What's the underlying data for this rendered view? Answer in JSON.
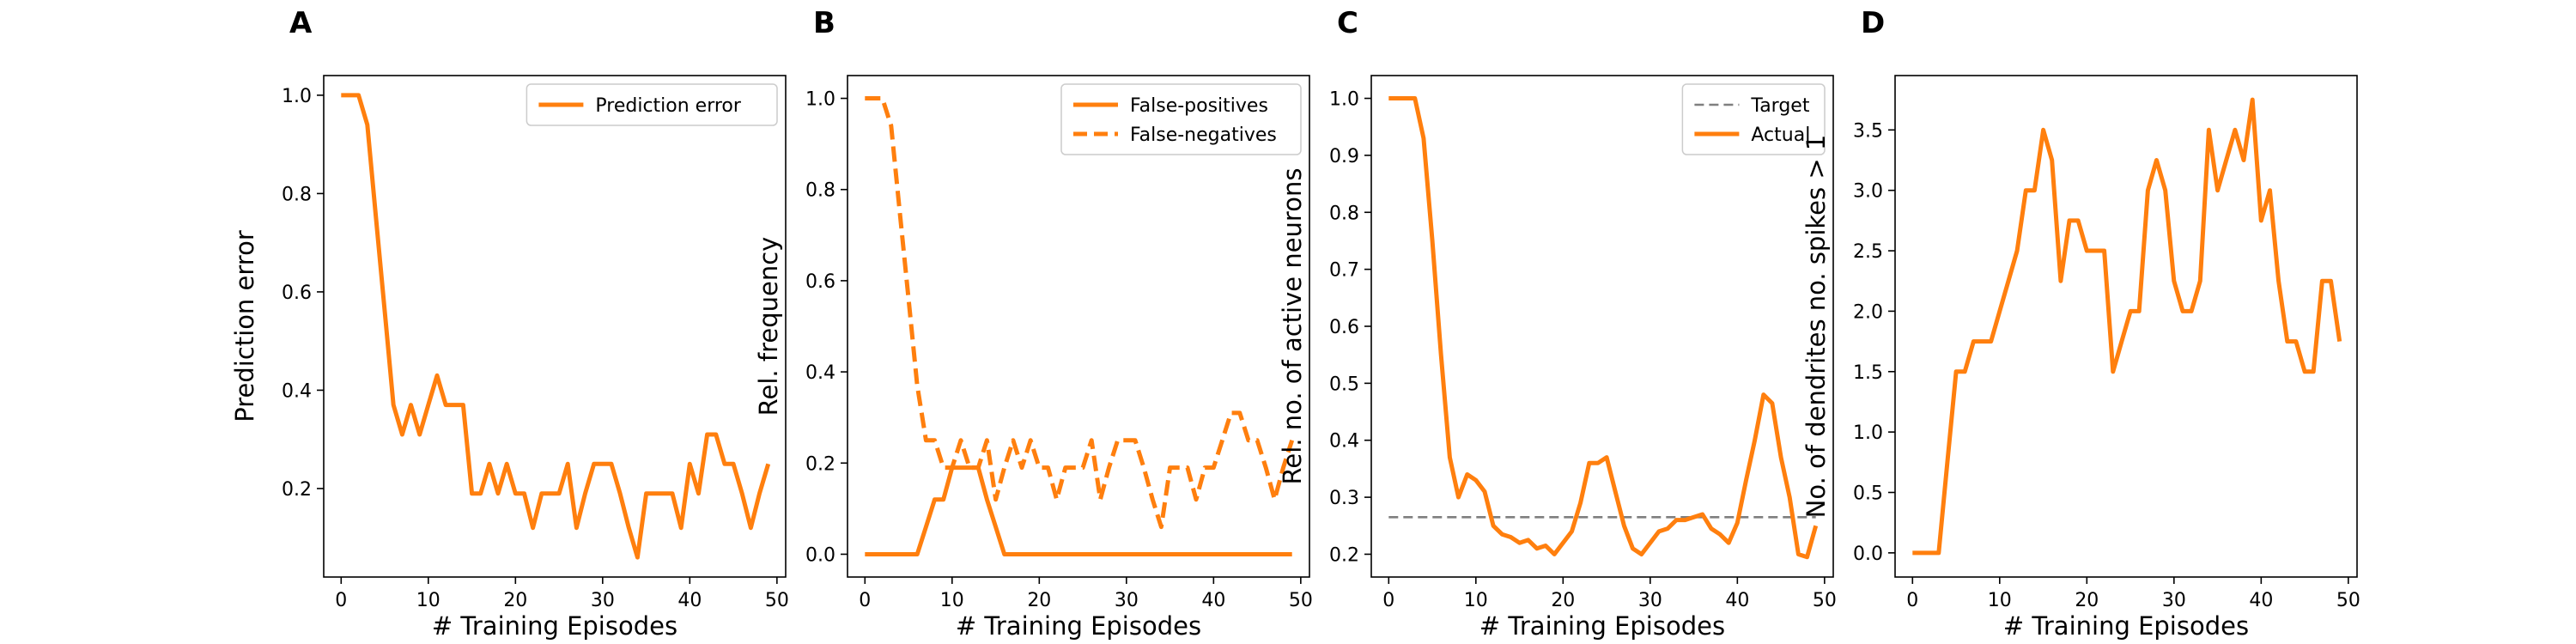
{
  "colors": {
    "series": "#ff7f0e",
    "target": "#7f7f7f"
  },
  "chart_data": [
    {
      "type": "line",
      "panel": "A",
      "xlabel": "# Training Episodes",
      "ylabel": "Prediction error",
      "xlim": [
        -2,
        51
      ],
      "ylim": [
        0.02,
        1.04
      ],
      "xticks": [
        0,
        10,
        20,
        30,
        40,
        50
      ],
      "yticks": [
        0.2,
        0.4,
        0.6,
        0.8,
        1.0
      ],
      "ytick_labels": [
        "0.2",
        "0.4",
        "0.6",
        "0.8",
        "1.0"
      ],
      "legend_position": "top-right",
      "series": [
        {
          "name": "Prediction error",
          "style": "solid",
          "color": "#ff7f0e",
          "x": [
            0,
            1,
            2,
            3,
            4,
            5,
            6,
            7,
            8,
            9,
            10,
            11,
            12,
            13,
            14,
            15,
            16,
            17,
            18,
            19,
            20,
            21,
            22,
            23,
            24,
            25,
            26,
            27,
            28,
            29,
            30,
            31,
            32,
            33,
            34,
            35,
            36,
            37,
            38,
            39,
            40,
            41,
            42,
            43,
            44,
            45,
            46,
            47,
            48,
            49
          ],
          "y": [
            1.0,
            1.0,
            1.0,
            0.94,
            0.75,
            0.56,
            0.37,
            0.31,
            0.37,
            0.31,
            0.37,
            0.43,
            0.37,
            0.37,
            0.37,
            0.19,
            0.19,
            0.25,
            0.19,
            0.25,
            0.19,
            0.19,
            0.12,
            0.19,
            0.19,
            0.19,
            0.25,
            0.12,
            0.19,
            0.25,
            0.25,
            0.25,
            0.19,
            0.12,
            0.06,
            0.19,
            0.19,
            0.19,
            0.19,
            0.12,
            0.25,
            0.19,
            0.31,
            0.31,
            0.25,
            0.25,
            0.19,
            0.12,
            0.19,
            0.25
          ]
        }
      ]
    },
    {
      "type": "line",
      "panel": "B",
      "xlabel": "# Training Episodes",
      "ylabel": "Rel. frequency",
      "xlim": [
        -2,
        51
      ],
      "ylim": [
        -0.05,
        1.05
      ],
      "xticks": [
        0,
        10,
        20,
        30,
        40,
        50
      ],
      "yticks": [
        0.0,
        0.2,
        0.4,
        0.6,
        0.8,
        1.0
      ],
      "ytick_labels": [
        "0.0",
        "0.2",
        "0.4",
        "0.6",
        "0.8",
        "1.0"
      ],
      "legend_position": "top-right",
      "series": [
        {
          "name": "False-positives",
          "style": "solid",
          "color": "#ff7f0e",
          "x": [
            0,
            1,
            2,
            3,
            4,
            5,
            6,
            7,
            8,
            9,
            10,
            11,
            12,
            13,
            14,
            15,
            16,
            17,
            18,
            19,
            20,
            21,
            22,
            23,
            24,
            25,
            26,
            27,
            28,
            29,
            30,
            31,
            32,
            33,
            34,
            35,
            36,
            37,
            38,
            39,
            40,
            41,
            42,
            43,
            44,
            45,
            46,
            47,
            48,
            49
          ],
          "y": [
            0,
            0,
            0,
            0,
            0,
            0,
            0,
            0.06,
            0.12,
            0.12,
            0.19,
            0.19,
            0.19,
            0.19,
            0.12,
            0.06,
            0,
            0,
            0,
            0,
            0,
            0,
            0,
            0,
            0,
            0,
            0,
            0,
            0,
            0,
            0,
            0,
            0,
            0,
            0,
            0,
            0,
            0,
            0,
            0,
            0,
            0,
            0,
            0,
            0,
            0,
            0,
            0,
            0,
            0
          ]
        },
        {
          "name": "False-negatives",
          "style": "dashed",
          "color": "#ff7f0e",
          "x": [
            0,
            1,
            2,
            3,
            4,
            5,
            6,
            7,
            8,
            9,
            10,
            11,
            12,
            13,
            14,
            15,
            16,
            17,
            18,
            19,
            20,
            21,
            22,
            23,
            24,
            25,
            26,
            27,
            28,
            29,
            30,
            31,
            32,
            33,
            34,
            35,
            36,
            37,
            38,
            39,
            40,
            41,
            42,
            43,
            44,
            45,
            46,
            47,
            48,
            49
          ],
          "y": [
            1.0,
            1.0,
            1.0,
            0.94,
            0.75,
            0.56,
            0.37,
            0.25,
            0.25,
            0.19,
            0.19,
            0.25,
            0.19,
            0.19,
            0.25,
            0.12,
            0.19,
            0.25,
            0.19,
            0.25,
            0.19,
            0.19,
            0.12,
            0.19,
            0.19,
            0.19,
            0.25,
            0.12,
            0.19,
            0.25,
            0.25,
            0.25,
            0.19,
            0.12,
            0.06,
            0.19,
            0.19,
            0.19,
            0.12,
            0.19,
            0.19,
            0.25,
            0.31,
            0.31,
            0.25,
            0.25,
            0.19,
            0.12,
            0.19,
            0.25
          ]
        }
      ]
    },
    {
      "type": "line",
      "panel": "C",
      "xlabel": "# Training Episodes",
      "ylabel": "Rel. no. of active neurons",
      "xlim": [
        -2,
        51
      ],
      "ylim": [
        0.16,
        1.04
      ],
      "xticks": [
        0,
        10,
        20,
        30,
        40,
        50
      ],
      "yticks": [
        0.2,
        0.3,
        0.4,
        0.5,
        0.6,
        0.7,
        0.8,
        0.9,
        1.0
      ],
      "ytick_labels": [
        "0.2",
        "0.3",
        "0.4",
        "0.5",
        "0.6",
        "0.7",
        "0.8",
        "0.9",
        "1.0"
      ],
      "legend_position": "top-right",
      "series": [
        {
          "name": "Target",
          "style": "dashed",
          "color": "#7f7f7f",
          "x": [
            0,
            49
          ],
          "y": [
            0.265,
            0.265
          ]
        },
        {
          "name": "Actual",
          "style": "solid",
          "color": "#ff7f0e",
          "x": [
            0,
            1,
            2,
            3,
            4,
            5,
            6,
            7,
            8,
            9,
            10,
            11,
            12,
            13,
            14,
            15,
            16,
            17,
            18,
            19,
            20,
            21,
            22,
            23,
            24,
            25,
            26,
            27,
            28,
            29,
            30,
            31,
            32,
            33,
            34,
            35,
            36,
            37,
            38,
            39,
            40,
            41,
            42,
            43,
            44,
            45,
            46,
            47,
            48,
            49
          ],
          "y": [
            1.0,
            1.0,
            1.0,
            1.0,
            0.93,
            0.75,
            0.55,
            0.37,
            0.3,
            0.34,
            0.33,
            0.31,
            0.25,
            0.235,
            0.23,
            0.22,
            0.225,
            0.21,
            0.215,
            0.2,
            0.22,
            0.24,
            0.29,
            0.36,
            0.36,
            0.37,
            0.31,
            0.25,
            0.21,
            0.2,
            0.22,
            0.24,
            0.245,
            0.26,
            0.26,
            0.265,
            0.27,
            0.245,
            0.235,
            0.22,
            0.255,
            0.33,
            0.4,
            0.48,
            0.465,
            0.37,
            0.3,
            0.2,
            0.195,
            0.25
          ]
        }
      ]
    },
    {
      "type": "line",
      "panel": "D",
      "xlabel": "# Training Episodes",
      "ylabel": "No. of dendrites no. spikes > 1",
      "xlim": [
        -2,
        51
      ],
      "ylim": [
        -0.2,
        3.95
      ],
      "xticks": [
        0,
        10,
        20,
        30,
        40,
        50
      ],
      "yticks": [
        0.0,
        0.5,
        1.0,
        1.5,
        2.0,
        2.5,
        3.0,
        3.5
      ],
      "ytick_labels": [
        "0.0",
        "0.5",
        "1.0",
        "1.5",
        "2.0",
        "2.5",
        "3.0",
        "3.5"
      ],
      "legend_position": "none",
      "series": [
        {
          "color": "#ff7f0e",
          "style": "solid",
          "x": [
            0,
            1,
            2,
            3,
            4,
            5,
            6,
            7,
            8,
            9,
            10,
            11,
            12,
            13,
            14,
            15,
            16,
            17,
            18,
            19,
            20,
            21,
            22,
            23,
            24,
            25,
            26,
            27,
            28,
            29,
            30,
            31,
            32,
            33,
            34,
            35,
            36,
            37,
            38,
            39,
            40,
            41,
            42,
            43,
            44,
            45,
            46,
            47,
            48,
            49
          ],
          "y": [
            0,
            0,
            0,
            0,
            0.75,
            1.5,
            1.5,
            1.75,
            1.75,
            1.75,
            2.0,
            2.25,
            2.5,
            3.0,
            3.0,
            3.5,
            3.25,
            2.25,
            2.75,
            2.75,
            2.5,
            2.5,
            2.5,
            1.5,
            1.75,
            2.0,
            2.0,
            3.0,
            3.25,
            3.0,
            2.25,
            2.0,
            2.0,
            2.25,
            3.5,
            3.0,
            3.25,
            3.5,
            3.25,
            3.75,
            2.75,
            3.0,
            2.25,
            1.75,
            1.75,
            1.5,
            1.5,
            2.25,
            2.25,
            1.75
          ]
        }
      ]
    }
  ],
  "panel_letters": [
    "A",
    "B",
    "C",
    "D"
  ]
}
